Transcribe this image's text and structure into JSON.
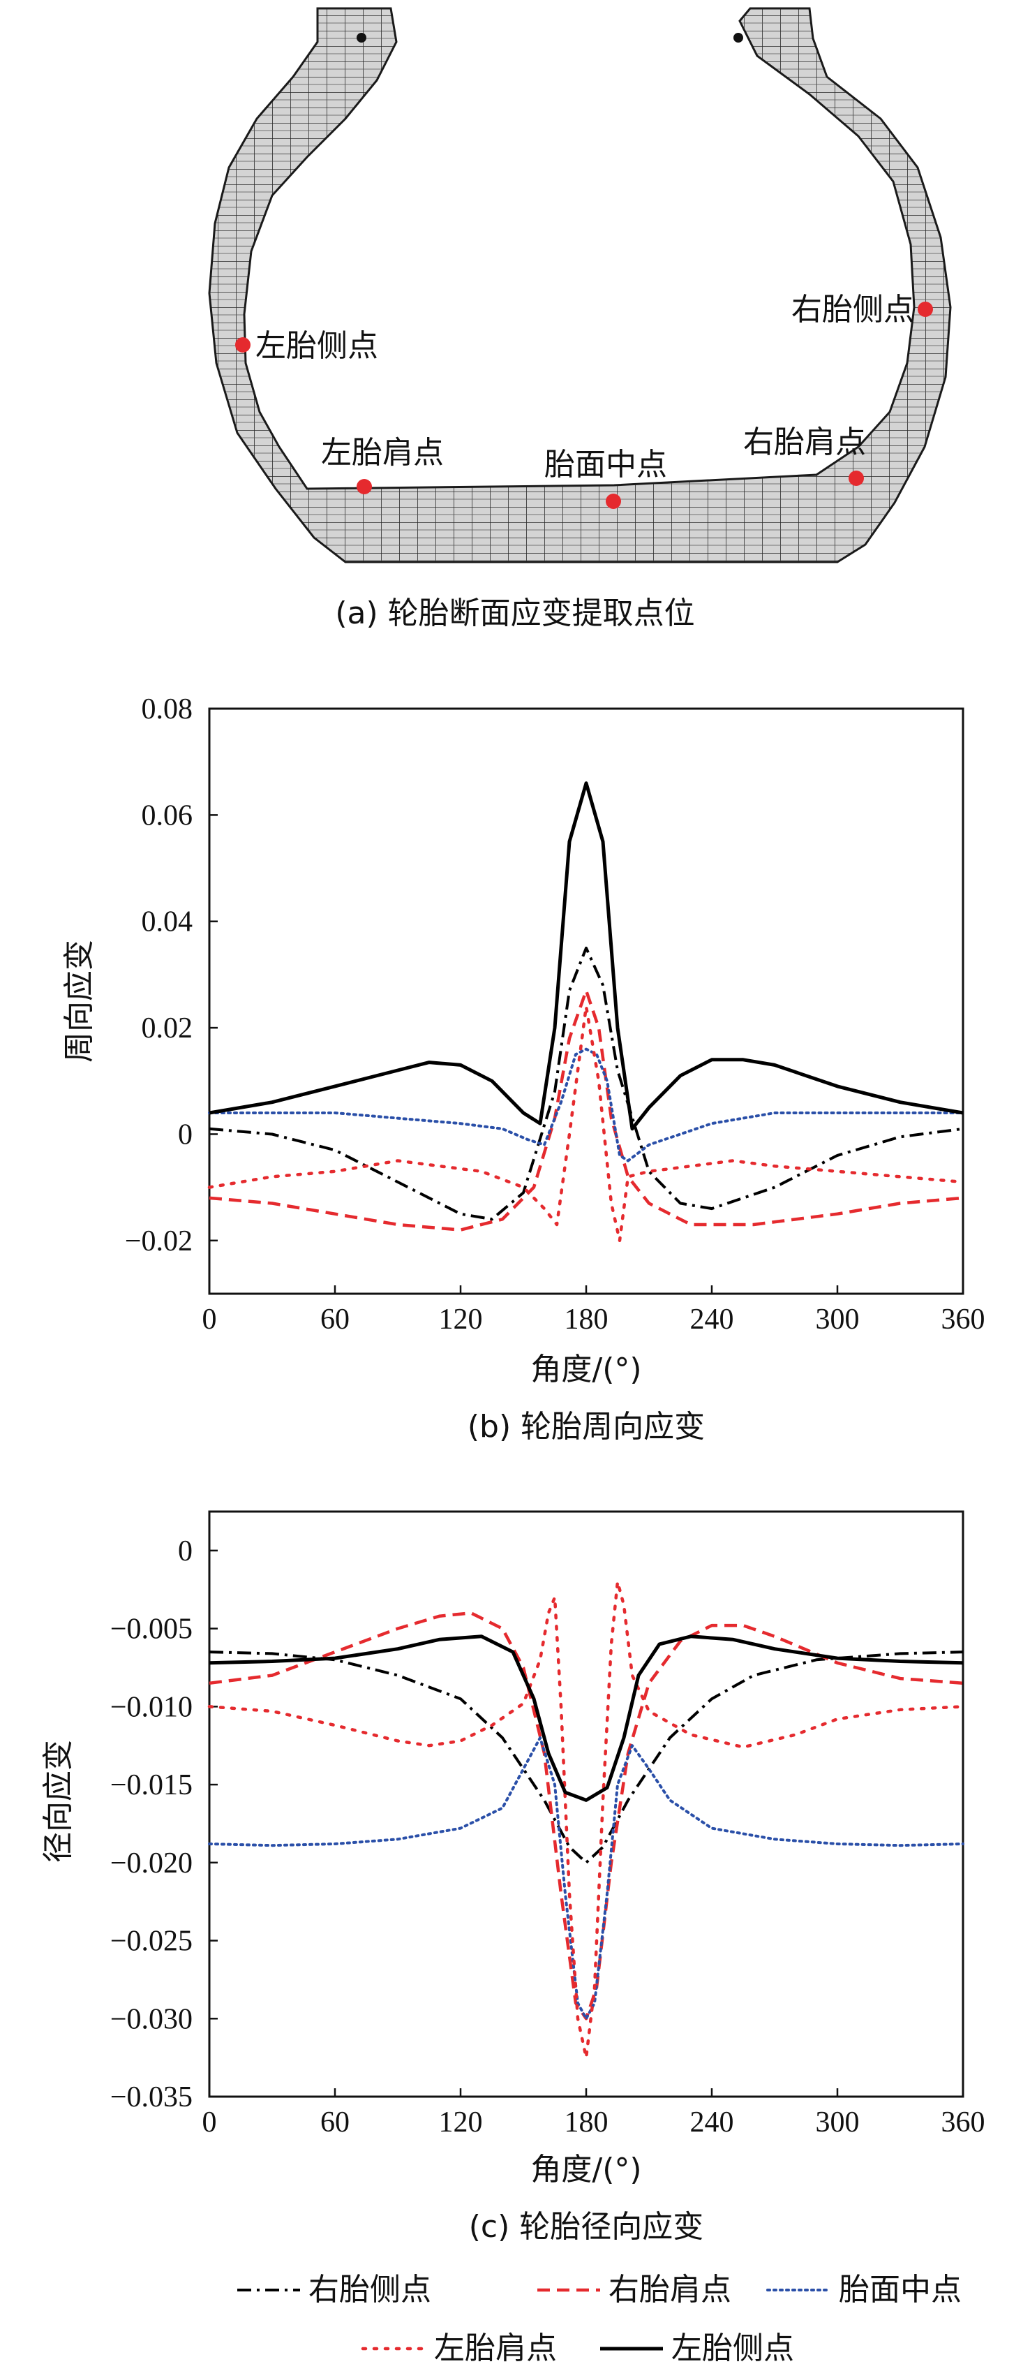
{
  "panel_a": {
    "caption": "(a) 轮胎断面应变提取点位",
    "points": [
      {
        "key": "left_sidewall",
        "label": "左胎侧点"
      },
      {
        "key": "right_sidewall",
        "label": "右胎侧点"
      },
      {
        "key": "left_shoulder",
        "label": "左胎肩点"
      },
      {
        "key": "tread_center",
        "label": "胎面中点"
      },
      {
        "key": "right_shoulder",
        "label": "右胎肩点"
      }
    ],
    "point_color": "#e52a2e",
    "mesh_fill": "#d4d4d4"
  },
  "legend": {
    "items": [
      {
        "label": "右胎侧点",
        "color": "#000000",
        "style": "dashdot"
      },
      {
        "label": "右胎肩点",
        "color": "#e52a2e",
        "style": "dashed"
      },
      {
        "label": "胎面中点",
        "color": "#2a4fa8",
        "style": "dotted"
      },
      {
        "label": "左胎肩点",
        "color": "#e52a2e",
        "style": "sparsedot"
      },
      {
        "label": "左胎侧点",
        "color": "#000000",
        "style": "solid"
      }
    ]
  },
  "chart_data": [
    {
      "type": "line",
      "caption": "(b) 轮胎周向应变",
      "xlabel": "角度/(°)",
      "ylabel": "周向应变",
      "xlim": [
        0,
        360
      ],
      "ylim": [
        -0.03,
        0.08
      ],
      "xticks": [
        0,
        60,
        120,
        180,
        240,
        300,
        360
      ],
      "yticks": [
        -0.02,
        0,
        0.02,
        0.04,
        0.06,
        0.08
      ],
      "ytick_labels": [
        "−0.02",
        "0",
        "0.02",
        "0.04",
        "0.06",
        "0.08"
      ],
      "grid": false,
      "series": [
        {
          "name": "右胎侧点",
          "color": "#000000",
          "style": "dashdot",
          "x": [
            0,
            30,
            60,
            90,
            120,
            135,
            150,
            165,
            172,
            180,
            188,
            195,
            210,
            225,
            240,
            270,
            300,
            330,
            360
          ],
          "y": [
            0.001,
            0.0,
            -0.003,
            -0.009,
            -0.015,
            -0.016,
            -0.011,
            0.008,
            0.027,
            0.035,
            0.028,
            0.012,
            -0.007,
            -0.013,
            -0.014,
            -0.01,
            -0.004,
            -0.0005,
            0.001
          ]
        },
        {
          "name": "右胎肩点",
          "color": "#e52a2e",
          "style": "dashed",
          "x": [
            0,
            30,
            60,
            90,
            120,
            140,
            155,
            165,
            172,
            180,
            186,
            192,
            200,
            210,
            230,
            260,
            300,
            330,
            360
          ],
          "y": [
            -0.012,
            -0.013,
            -0.015,
            -0.017,
            -0.018,
            -0.016,
            -0.01,
            0.003,
            0.018,
            0.027,
            0.02,
            0.003,
            -0.008,
            -0.013,
            -0.017,
            -0.017,
            -0.015,
            -0.013,
            -0.012
          ]
        },
        {
          "name": "胎面中点",
          "color": "#2a4fa8",
          "style": "dotted",
          "x": [
            0,
            30,
            60,
            90,
            120,
            140,
            152,
            160,
            168,
            175,
            180,
            185,
            190,
            196,
            200,
            210,
            240,
            270,
            300,
            330,
            360
          ],
          "y": [
            0.004,
            0.004,
            0.004,
            0.003,
            0.002,
            0.001,
            -0.001,
            -0.002,
            0.006,
            0.015,
            0.016,
            0.015,
            0.01,
            -0.004,
            -0.005,
            -0.002,
            0.002,
            0.004,
            0.004,
            0.004,
            0.004
          ]
        },
        {
          "name": "左胎肩点",
          "color": "#e52a2e",
          "style": "sparsedot",
          "x": [
            0,
            30,
            60,
            90,
            110,
            130,
            150,
            160,
            166,
            172,
            180,
            186,
            192,
            196,
            200,
            210,
            230,
            250,
            270,
            300,
            330,
            360
          ],
          "y": [
            -0.01,
            -0.008,
            -0.007,
            -0.005,
            -0.006,
            -0.007,
            -0.01,
            -0.014,
            -0.017,
            0.0,
            0.024,
            0.01,
            -0.013,
            -0.02,
            -0.008,
            -0.007,
            -0.006,
            -0.005,
            -0.006,
            -0.007,
            -0.008,
            -0.009
          ]
        },
        {
          "name": "左胎侧点",
          "color": "#000000",
          "style": "solid",
          "x": [
            0,
            30,
            60,
            90,
            105,
            120,
            135,
            150,
            158,
            165,
            172,
            180,
            188,
            195,
            202,
            210,
            225,
            240,
            255,
            270,
            300,
            330,
            360
          ],
          "y": [
            0.004,
            0.006,
            0.009,
            0.012,
            0.0135,
            0.013,
            0.01,
            0.004,
            0.002,
            0.02,
            0.055,
            0.066,
            0.055,
            0.02,
            0.001,
            0.005,
            0.011,
            0.014,
            0.014,
            0.013,
            0.009,
            0.006,
            0.004
          ]
        }
      ]
    },
    {
      "type": "line",
      "caption": "(c) 轮胎径向应变",
      "xlabel": "角度/(°)",
      "ylabel": "径向应变",
      "xlim": [
        0,
        360
      ],
      "ylim": [
        -0.035,
        0.0025
      ],
      "xticks": [
        0,
        60,
        120,
        180,
        240,
        300,
        360
      ],
      "yticks": [
        -0.035,
        -0.03,
        -0.025,
        -0.02,
        -0.015,
        -0.01,
        -0.005,
        0
      ],
      "ytick_labels": [
        "−0.035",
        "−0.030",
        "−0.025",
        "−0.020",
        "−0.015",
        "−0.010",
        "−0.005",
        "0"
      ],
      "grid": false,
      "series": [
        {
          "name": "右胎侧点",
          "color": "#000000",
          "style": "dashdot",
          "x": [
            0,
            30,
            60,
            90,
            120,
            140,
            160,
            172,
            180,
            188,
            200,
            220,
            240,
            260,
            290,
            330,
            360
          ],
          "y": [
            -0.0065,
            -0.0066,
            -0.007,
            -0.008,
            -0.0095,
            -0.012,
            -0.016,
            -0.019,
            -0.02,
            -0.019,
            -0.016,
            -0.012,
            -0.0095,
            -0.008,
            -0.007,
            -0.0066,
            -0.0065
          ]
        },
        {
          "name": "右胎肩点",
          "color": "#e52a2e",
          "style": "dashed",
          "x": [
            0,
            30,
            60,
            90,
            110,
            125,
            140,
            150,
            160,
            168,
            175,
            180,
            185,
            192,
            200,
            210,
            225,
            240,
            255,
            270,
            300,
            330,
            360
          ],
          "y": [
            -0.0085,
            -0.008,
            -0.0065,
            -0.005,
            -0.0042,
            -0.004,
            -0.005,
            -0.0075,
            -0.013,
            -0.022,
            -0.029,
            -0.03,
            -0.028,
            -0.02,
            -0.013,
            -0.0085,
            -0.0058,
            -0.0048,
            -0.0048,
            -0.0055,
            -0.0072,
            -0.0082,
            -0.0085
          ]
        },
        {
          "name": "胎面中点",
          "color": "#2a4fa8",
          "style": "dotted",
          "x": [
            0,
            30,
            60,
            90,
            120,
            140,
            150,
            158,
            165,
            170,
            176,
            180,
            184,
            190,
            195,
            202,
            210,
            220,
            240,
            270,
            300,
            330,
            360
          ],
          "y": [
            -0.0188,
            -0.0189,
            -0.0188,
            -0.0185,
            -0.0178,
            -0.0165,
            -0.014,
            -0.012,
            -0.015,
            -0.022,
            -0.029,
            -0.03,
            -0.029,
            -0.022,
            -0.015,
            -0.0125,
            -0.014,
            -0.016,
            -0.0178,
            -0.0185,
            -0.0188,
            -0.0189,
            -0.0188
          ]
        },
        {
          "name": "左胎肩点",
          "color": "#e52a2e",
          "style": "sparsedot",
          "x": [
            0,
            30,
            60,
            90,
            105,
            120,
            135,
            150,
            158,
            162,
            165,
            168,
            172,
            176,
            180,
            184,
            188,
            192,
            195,
            198,
            202,
            210,
            230,
            255,
            280,
            300,
            330,
            360
          ],
          "y": [
            -0.01,
            -0.0103,
            -0.0112,
            -0.0122,
            -0.0125,
            -0.0122,
            -0.0112,
            -0.0098,
            -0.007,
            -0.004,
            -0.003,
            -0.01,
            -0.022,
            -0.03,
            -0.0325,
            -0.028,
            -0.016,
            -0.006,
            -0.002,
            -0.0035,
            -0.008,
            -0.0103,
            -0.0118,
            -0.0126,
            -0.0118,
            -0.0108,
            -0.0102,
            -0.01
          ]
        },
        {
          "name": "左胎侧点",
          "color": "#000000",
          "style": "solid",
          "x": [
            0,
            30,
            60,
            90,
            110,
            130,
            145,
            155,
            162,
            170,
            180,
            190,
            198,
            205,
            215,
            230,
            250,
            270,
            300,
            330,
            360
          ],
          "y": [
            -0.0072,
            -0.0071,
            -0.0069,
            -0.0063,
            -0.0057,
            -0.0055,
            -0.0065,
            -0.0095,
            -0.013,
            -0.0155,
            -0.016,
            -0.0152,
            -0.012,
            -0.008,
            -0.006,
            -0.0055,
            -0.0057,
            -0.0063,
            -0.0069,
            -0.0071,
            -0.0072
          ]
        }
      ]
    }
  ]
}
